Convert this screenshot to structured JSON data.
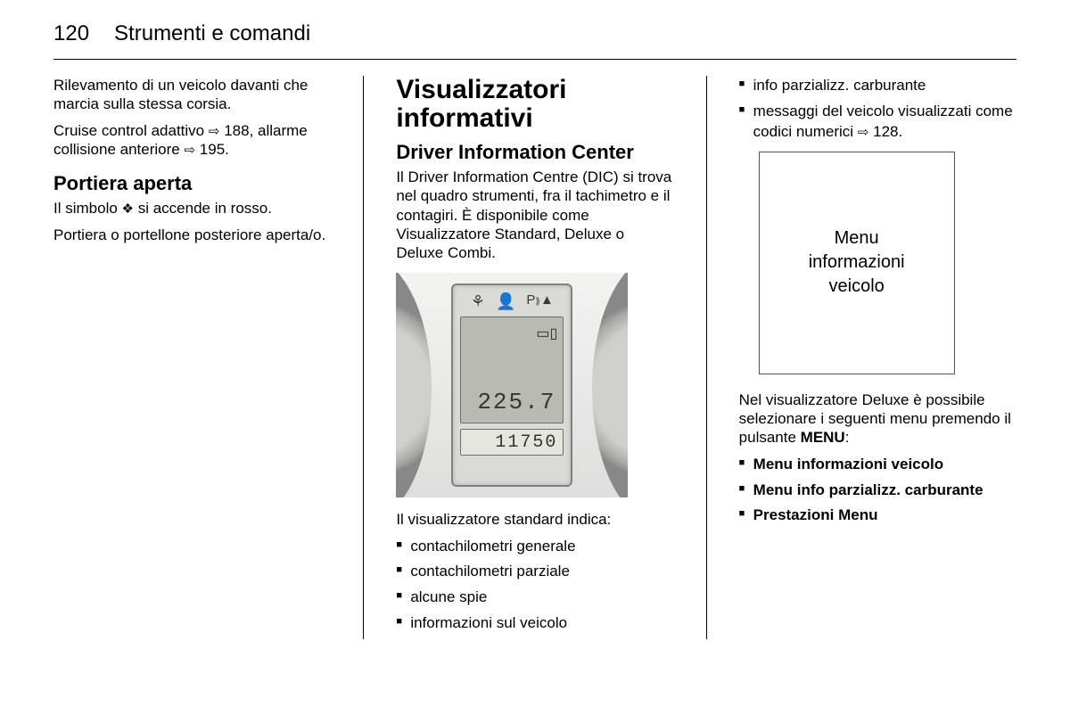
{
  "page_number": "120",
  "chapter": "Strumenti e comandi",
  "col1": {
    "p1": "Rilevamento di un veicolo davanti che marcia sulla stessa corsia.",
    "p2_pre": "Cruise control adattivo ",
    "p2_ref1": "188",
    "p2_mid": ", allarme collisione anteriore ",
    "p2_ref2": "195",
    "p2_post": ".",
    "h_door": "Portiera aperta",
    "p3_pre": "Il simbolo ",
    "p3_sym": "⬙",
    "p3_post": " si accende in rosso.",
    "p4": "Portiera o portellone posteriore aperta/o."
  },
  "col2": {
    "h_main": "Visualizzatori informativi",
    "h_sub": "Driver Information Center",
    "p1": "Il Driver Information Centre (DIC) si trova nel quadro strumenti, fra il tachimetro e il contagiri. È disponibile come Visualizzatore Standard, Deluxe o Deluxe Combi.",
    "dic": {
      "icon1": "⚘",
      "icon2": "🜂",
      "icon3": "P⟫▲",
      "book_icon": "▭▯",
      "trip": "225.7",
      "odo": "11750"
    },
    "p2": "Il visualizzatore standard indica:",
    "list": [
      "contachilometri generale",
      "contachilometri parziale",
      "alcune spie",
      "informazioni sul veicolo"
    ]
  },
  "col3": {
    "list_top": [
      "info parzializz. carburante"
    ],
    "li2_pre": "messaggi del veicolo visualizzati come codici numerici ",
    "li2_ref": "128",
    "li2_post": ".",
    "menu_box": "Menu\ninformazioni\nveicolo",
    "p1_pre": "Nel visualizzatore Deluxe è possibile selezionare i seguenti menu premendo il pulsante ",
    "p1_bold": "MENU",
    "p1_post": ":",
    "list_bold": [
      "Menu informazioni veicolo",
      "Menu info parzializz. carburante",
      "Prestazioni Menu"
    ]
  }
}
